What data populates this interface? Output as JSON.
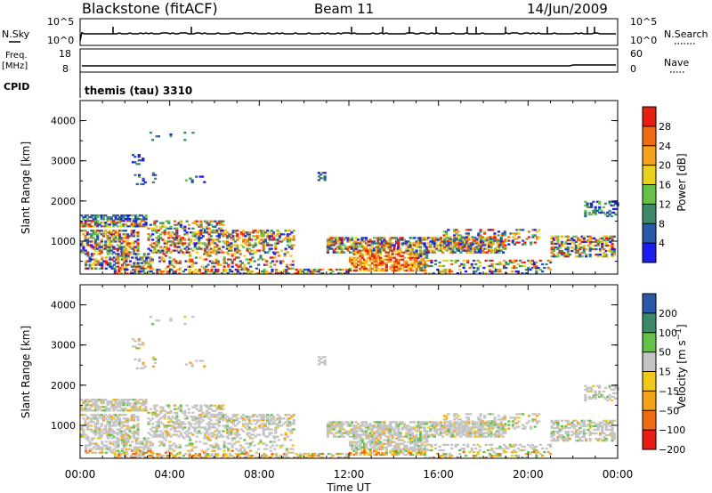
{
  "header": {
    "station": "Blackstone (fitACF)",
    "beam": "Beam 11",
    "date": "14/Jun/2009"
  },
  "summary": {
    "nsky_label": "N.Sky",
    "nsearch_label": "N.Search",
    "nsky_ticks": [
      "10^5",
      "10^0"
    ],
    "nsearch_ticks": [
      "10^5",
      "10^0"
    ],
    "freq_label": "Freq.",
    "freq_unit": "[MHz]",
    "freq_ticks": [
      "18",
      "8"
    ],
    "nave_label": "Nave",
    "nave_ticks": [
      "60",
      "0"
    ],
    "cpid_label": "CPID",
    "cpid_value": "themis (tau) 3310"
  },
  "colors": {
    "power": [
      "#1c1cf0",
      "#2a58a8",
      "#3c8a6a",
      "#63c249",
      "#e8d21e",
      "#f4a21a",
      "#f06a14",
      "#e81c10"
    ],
    "velocity": [
      "#e81c10",
      "#f06a14",
      "#f4a21a",
      "#f2c71c",
      "#c4c4c4",
      "#63c249",
      "#3a8a6a",
      "#2a58a8"
    ]
  },
  "chart_data": [
    {
      "type": "heatmap",
      "title": "",
      "ylabel": "Slant Range [km]",
      "xlabel": "",
      "ylim": [
        180,
        4500
      ],
      "yticks": [
        "4000",
        "3000",
        "2000",
        "1000"
      ],
      "xticks": [
        "00:00",
        "04:00",
        "08:00",
        "12:00",
        "16:00",
        "20:00",
        "00:00"
      ],
      "colorbar_label": "Power [dB]",
      "colorbar_ticks": [
        "28",
        "24",
        "20",
        "16",
        "12",
        "8",
        "4"
      ],
      "colorbar_range": [
        0,
        32
      ]
    },
    {
      "type": "heatmap",
      "title": "",
      "ylabel": "Slant Range [km]",
      "xlabel": "Time UT",
      "ylim": [
        180,
        4500
      ],
      "yticks": [
        "4000",
        "3000",
        "2000",
        "1000"
      ],
      "xticks": [
        "00:00",
        "04:00",
        "08:00",
        "12:00",
        "16:00",
        "20:00",
        "00:00"
      ],
      "colorbar_label": "Velocity [m s^-1]",
      "colorbar_ticks": [
        "200",
        "100",
        "50",
        "15",
        "-15",
        "-50",
        "-100",
        "-200"
      ]
    }
  ]
}
